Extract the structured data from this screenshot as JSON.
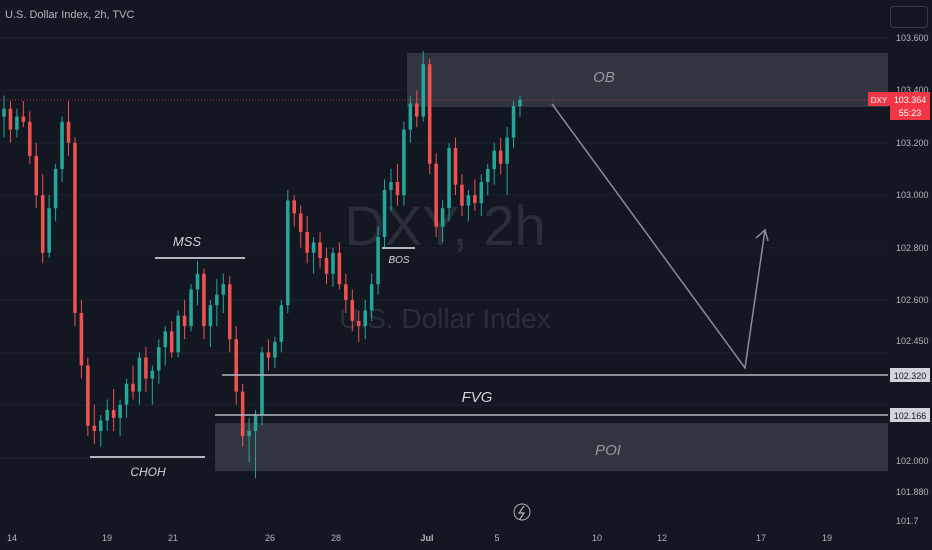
{
  "header": {
    "title": "U.S. Dollar Index, 2h, TVC"
  },
  "watermark": {
    "line1": "DXY, 2h",
    "line2": "U.S. Dollar Index"
  },
  "colors": {
    "up": "#26a69a",
    "down": "#ef5350",
    "background": "#131722",
    "axis_text": "#b2b5be",
    "zone": "#4a4e5a",
    "line": "#b2b5be",
    "price_label": "#f23645"
  },
  "chart_data": {
    "type": "candlestick",
    "ylim": [
      101.76,
      103.66
    ],
    "y_ticks": [
      "103.600",
      "103.400",
      "103.200",
      "103.000",
      "102.800",
      "102.600",
      "102.450",
      "101.880",
      "101.7"
    ],
    "x_ticks": [
      "14",
      "19",
      "21",
      "26",
      "28",
      "Jul",
      "5",
      "10",
      "12",
      "17",
      "19"
    ],
    "last_price": {
      "symbol": "DXY",
      "value": "103.364",
      "countdown": "55:23"
    },
    "price_labels": [
      "102.320",
      "102.166",
      "102.000"
    ],
    "annotations": [
      "OB",
      "MSS",
      "BOS",
      "FVG",
      "POI",
      "CHOH"
    ],
    "candles": [
      [
        103.3,
        103.38,
        103.22,
        103.33
      ],
      [
        103.33,
        103.36,
        103.2,
        103.25
      ],
      [
        103.25,
        103.33,
        103.22,
        103.3
      ],
      [
        103.3,
        103.36,
        103.26,
        103.28
      ],
      [
        103.28,
        103.32,
        103.12,
        103.15
      ],
      [
        103.15,
        103.2,
        102.95,
        103.0
      ],
      [
        103.0,
        103.08,
        102.74,
        102.78
      ],
      [
        102.78,
        103.0,
        102.76,
        102.95
      ],
      [
        102.95,
        103.12,
        102.9,
        103.1
      ],
      [
        103.1,
        103.3,
        103.05,
        103.28
      ],
      [
        103.28,
        103.36,
        103.15,
        103.2
      ],
      [
        103.2,
        103.22,
        102.5,
        102.55
      ],
      [
        102.55,
        102.6,
        102.3,
        102.35
      ],
      [
        102.35,
        102.38,
        102.08,
        102.12
      ],
      [
        102.12,
        102.2,
        102.05,
        102.1
      ],
      [
        102.1,
        102.16,
        102.04,
        102.14
      ],
      [
        102.14,
        102.22,
        102.1,
        102.18
      ],
      [
        102.18,
        102.26,
        102.1,
        102.15
      ],
      [
        102.15,
        102.22,
        102.08,
        102.2
      ],
      [
        102.2,
        102.3,
        102.15,
        102.28
      ],
      [
        102.28,
        102.35,
        102.22,
        102.25
      ],
      [
        102.25,
        102.4,
        102.2,
        102.38
      ],
      [
        102.38,
        102.42,
        102.25,
        102.3
      ],
      [
        102.3,
        102.35,
        102.2,
        102.33
      ],
      [
        102.33,
        102.45,
        102.28,
        102.42
      ],
      [
        102.42,
        102.5,
        102.35,
        102.48
      ],
      [
        102.48,
        102.52,
        102.38,
        102.4
      ],
      [
        102.4,
        102.56,
        102.38,
        102.54
      ],
      [
        102.54,
        102.6,
        102.45,
        102.5
      ],
      [
        102.5,
        102.66,
        102.48,
        102.64
      ],
      [
        102.64,
        102.75,
        102.58,
        102.7
      ],
      [
        102.7,
        102.72,
        102.45,
        102.5
      ],
      [
        102.5,
        102.6,
        102.42,
        102.58
      ],
      [
        102.58,
        102.68,
        102.5,
        102.62
      ],
      [
        102.62,
        102.7,
        102.55,
        102.66
      ],
      [
        102.66,
        102.69,
        102.4,
        102.45
      ],
      [
        102.45,
        102.5,
        102.2,
        102.25
      ],
      [
        102.25,
        102.28,
        102.04,
        102.08
      ],
      [
        102.08,
        102.15,
        101.98,
        102.1
      ],
      [
        102.1,
        102.18,
        101.92,
        102.16
      ],
      [
        102.16,
        102.42,
        102.12,
        102.4
      ],
      [
        102.4,
        102.45,
        102.33,
        102.38
      ],
      [
        102.38,
        102.46,
        102.34,
        102.44
      ],
      [
        102.44,
        102.6,
        102.4,
        102.58
      ],
      [
        102.58,
        103.02,
        102.55,
        102.98
      ],
      [
        102.98,
        103.0,
        102.88,
        102.93
      ],
      [
        102.93,
        102.96,
        102.8,
        102.86
      ],
      [
        102.86,
        102.92,
        102.74,
        102.78
      ],
      [
        102.78,
        102.84,
        102.7,
        102.82
      ],
      [
        102.82,
        102.86,
        102.72,
        102.76
      ],
      [
        102.76,
        102.8,
        102.66,
        102.7
      ],
      [
        102.7,
        102.8,
        102.65,
        102.78
      ],
      [
        102.78,
        102.82,
        102.64,
        102.66
      ],
      [
        102.66,
        102.7,
        102.55,
        102.6
      ],
      [
        102.6,
        102.64,
        102.48,
        102.52
      ],
      [
        102.52,
        102.56,
        102.44,
        102.5
      ],
      [
        102.5,
        102.6,
        102.45,
        102.56
      ],
      [
        102.56,
        102.7,
        102.52,
        102.66
      ],
      [
        102.66,
        102.88,
        102.62,
        102.84
      ],
      [
        102.84,
        103.06,
        102.8,
        103.02
      ],
      [
        103.02,
        103.1,
        102.94,
        103.05
      ],
      [
        103.05,
        103.12,
        102.96,
        103.0
      ],
      [
        103.0,
        103.28,
        102.96,
        103.25
      ],
      [
        103.25,
        103.38,
        103.2,
        103.35
      ],
      [
        103.35,
        103.4,
        103.26,
        103.3
      ],
      [
        103.3,
        103.55,
        103.28,
        103.5
      ],
      [
        103.5,
        103.52,
        103.08,
        103.12
      ],
      [
        103.12,
        103.16,
        102.84,
        102.88
      ],
      [
        102.88,
        102.98,
        102.82,
        102.95
      ],
      [
        102.95,
        103.2,
        102.9,
        103.18
      ],
      [
        103.18,
        103.22,
        103.0,
        103.04
      ],
      [
        103.04,
        103.08,
        102.92,
        102.96
      ],
      [
        102.96,
        103.02,
        102.9,
        103.0
      ],
      [
        103.0,
        103.06,
        102.94,
        102.97
      ],
      [
        102.97,
        103.08,
        102.92,
        103.05
      ],
      [
        103.05,
        103.12,
        103.0,
        103.1
      ],
      [
        103.1,
        103.2,
        103.04,
        103.17
      ],
      [
        103.17,
        103.22,
        103.08,
        103.12
      ],
      [
        103.12,
        103.26,
        103.0,
        103.22
      ],
      [
        103.22,
        103.36,
        103.18,
        103.34
      ],
      [
        103.34,
        103.38,
        103.3,
        103.364
      ]
    ]
  }
}
